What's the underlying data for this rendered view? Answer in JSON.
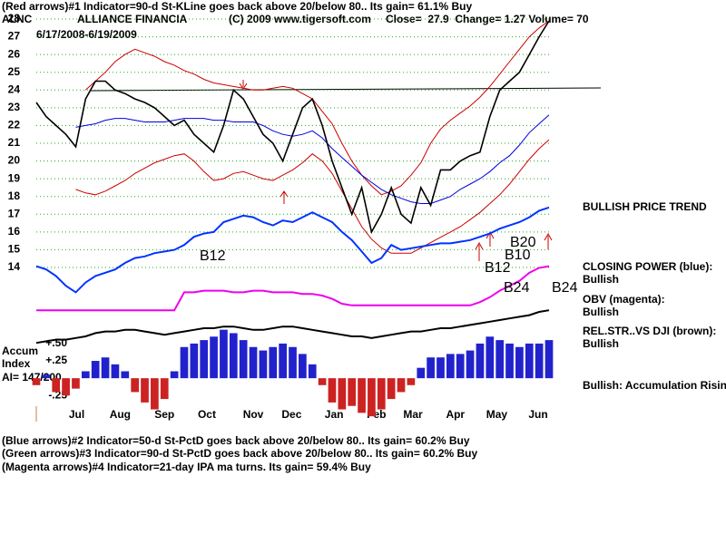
{
  "header": {
    "indicator_line": "(Red arrows)#1 Indicator=90-d St-KLine goes back above 20/below 80.. Its gain= 61.1% Buy",
    "ticker": "ALNC",
    "company": "ALLIANCE FINANCIA",
    "copyright": "(C) 2009 www.tigersoft.com",
    "quote": "Close=  27.9  Change= 1.27 Volume= 70",
    "date_range": "6/17/2008-6/19/2009"
  },
  "side_labels": {
    "trend": "BULLISH PRICE TREND",
    "closing_power": "CLOSING POWER (blue):",
    "closing_power_status": "Bullish",
    "obv": "OBV (magenta):",
    "obv_status": "Bullish",
    "rel_str": "REL.STR..VS DJI (brown):",
    "rel_str_status": "Bullish",
    "accum_status": "Bullish: Accumulation Rising"
  },
  "panel_labels": {
    "accum": "Accum",
    "index": "Index",
    "ai": "AI= 147/200"
  },
  "annotations": [
    "B12",
    "B12",
    "B10",
    "B20",
    "B24",
    "B24"
  ],
  "footer": [
    "(Blue arrows)#2 Indicator=50-d St-PctD goes back above 20/below 80.. Its gain= 60.2% Buy",
    "(Green arrows)#3 Indicator=90-d St-PctD goes back above 20/below 80.. Its gain= 60.2% Buy",
    "(Magenta arrows)#4 Indicator=21-day IPA ma turns. Its gain= 59.4% Buy"
  ],
  "chart_data": [
    {
      "type": "line",
      "x": [
        0,
        1,
        2,
        3,
        4,
        5,
        6,
        7,
        8,
        9,
        10,
        11,
        12,
        13,
        14,
        15,
        16,
        17,
        18,
        19,
        20,
        21,
        22,
        23,
        24,
        25,
        26,
        27,
        28,
        29,
        30,
        31,
        32,
        33,
        34,
        35,
        36,
        37,
        38,
        39,
        40,
        41,
        42,
        43,
        44,
        45,
        46,
        47,
        48,
        49,
        50,
        51,
        52
      ],
      "xlim": [
        0,
        52
      ],
      "xticks": [
        {
          "value": 4.1,
          "label": "Jul"
        },
        {
          "value": 8.5,
          "label": "Aug"
        },
        {
          "value": 13,
          "label": "Sep"
        },
        {
          "value": 17.3,
          "label": "Oct"
        },
        {
          "value": 22,
          "label": "Nov"
        },
        {
          "value": 25.9,
          "label": "Dec"
        },
        {
          "value": 30.2,
          "label": "Jan"
        },
        {
          "value": 34.5,
          "label": "Feb"
        },
        {
          "value": 38.2,
          "label": "Mar"
        },
        {
          "value": 42.5,
          "label": "Apr"
        },
        {
          "value": 46.7,
          "label": "May"
        },
        {
          "value": 50.9,
          "label": "Jun"
        }
      ],
      "ylim": [
        14,
        28
      ],
      "yticks": [
        14,
        15,
        16,
        17,
        18,
        19,
        20,
        21,
        22,
        23,
        24,
        25,
        26,
        27,
        28
      ],
      "grid": true,
      "series": [
        {
          "color": "#cc0000",
          "values": [
            null,
            null,
            null,
            null,
            null,
            24.0,
            24.5,
            25.0,
            25.6,
            26.0,
            26.3,
            26.1,
            25.9,
            25.6,
            25.4,
            25.1,
            24.9,
            24.6,
            24.4,
            24.3,
            24.2,
            24.1,
            24.0,
            24.0,
            24.1,
            24.2,
            24.1,
            23.8,
            23.5,
            22.8,
            22.1,
            21.0,
            20.0,
            19.2,
            18.6,
            18.1,
            18.3,
            18.6,
            19.2,
            19.9,
            21.0,
            21.8,
            22.3,
            22.7,
            23.1,
            23.6,
            24.2,
            24.9,
            25.6,
            26.3,
            27.0,
            27.5,
            27.9
          ]
        },
        {
          "color": "#cc0000",
          "values": [
            null,
            null,
            null,
            null,
            18.4,
            18.2,
            18.1,
            18.3,
            18.6,
            18.9,
            19.3,
            19.6,
            19.9,
            20.1,
            20.3,
            20.4,
            20.0,
            19.4,
            18.9,
            19.0,
            19.3,
            19.4,
            19.2,
            19.0,
            18.9,
            19.2,
            19.5,
            19.9,
            20.4,
            20.0,
            19.3,
            18.3,
            17.3,
            16.3,
            15.6,
            15.1,
            14.8,
            14.8,
            14.8,
            15.1,
            15.4,
            15.7,
            16.0,
            16.3,
            16.7,
            17.1,
            17.6,
            18.1,
            18.7,
            19.4,
            20.1,
            20.7,
            21.2
          ]
        },
        {
          "color": "#0000dd",
          "values": [
            null,
            null,
            null,
            null,
            21.9,
            22.0,
            22.1,
            22.3,
            22.4,
            22.4,
            22.3,
            22.2,
            22.2,
            22.2,
            22.3,
            22.4,
            22.4,
            22.4,
            22.3,
            22.3,
            22.2,
            22.2,
            22.2,
            22.0,
            21.7,
            21.5,
            21.4,
            21.5,
            21.7,
            21.3,
            20.7,
            20.2,
            19.7,
            19.2,
            18.8,
            18.4,
            18.1,
            17.9,
            17.7,
            17.6,
            17.6,
            17.8,
            18.0,
            18.4,
            18.7,
            19.0,
            19.4,
            19.9,
            20.3,
            20.9,
            21.6,
            22.1,
            22.6
          ]
        },
        {
          "color": "#000000",
          "values": [
            23.3,
            22.5,
            22.0,
            21.5,
            20.8,
            23.5,
            24.5,
            24.5,
            24.0,
            23.8,
            23.5,
            23.3,
            23.0,
            22.5,
            22.0,
            22.3,
            21.5,
            21.0,
            20.5,
            22.0,
            24.0,
            23.5,
            22.5,
            21.5,
            21.0,
            20.0,
            21.5,
            23.0,
            23.5,
            22.0,
            20.0,
            18.5,
            17.0,
            18.5,
            16.0,
            17.0,
            18.5,
            17.0,
            16.5,
            18.5,
            17.5,
            19.5,
            19.5,
            20.0,
            20.3,
            20.5,
            22.5,
            24.0,
            24.5,
            25.0,
            26.0,
            27.0,
            27.9
          ]
        }
      ]
    },
    {
      "type": "line",
      "x": [
        0,
        1,
        2,
        3,
        4,
        5,
        6,
        7,
        8,
        9,
        10,
        11,
        12,
        13,
        14,
        15,
        16,
        17,
        18,
        19,
        20,
        21,
        22,
        23,
        24,
        25,
        26,
        27,
        28,
        29,
        30,
        31,
        32,
        33,
        34,
        35,
        36,
        37,
        38,
        39,
        40,
        41,
        42,
        43,
        44,
        45,
        46,
        47,
        48,
        49,
        50,
        51,
        52
      ],
      "xlim": [
        0,
        52
      ],
      "ylim": [
        0,
        100
      ],
      "series": [
        {
          "color": "#0033ff",
          "values": [
            48,
            46,
            42,
            36,
            32,
            38,
            42,
            44,
            46,
            50,
            53,
            54,
            56,
            57,
            58,
            61,
            66,
            68,
            69,
            75,
            77,
            79,
            78,
            75,
            73,
            76,
            75,
            78,
            81,
            78,
            75,
            69,
            64,
            57,
            50,
            53,
            61,
            58,
            59,
            60,
            61,
            62,
            62,
            63,
            64,
            66,
            68,
            71,
            73,
            75,
            78,
            82,
            84
          ]
        },
        {
          "color": "#ee00ee",
          "values": [
            21,
            21,
            21,
            21,
            21,
            21,
            21,
            21,
            21,
            21,
            21,
            21,
            21,
            21,
            21,
            32,
            32,
            33,
            33,
            33,
            32,
            32,
            33,
            33,
            32,
            32,
            32,
            31,
            31,
            30,
            28,
            25,
            24,
            24,
            24,
            24,
            24,
            24,
            24,
            24,
            24,
            24,
            24,
            24,
            24,
            26,
            29,
            33,
            36,
            39,
            44,
            47,
            48
          ]
        },
        {
          "color": "#000000",
          "values": [
            1,
            2,
            3,
            3,
            4,
            5,
            7,
            8,
            8,
            9,
            9,
            8,
            7,
            6,
            7,
            8,
            9,
            10,
            10,
            11,
            11,
            10,
            9,
            9,
            10,
            11,
            11,
            10,
            9,
            8,
            7,
            6,
            5,
            5,
            4,
            5,
            6,
            7,
            8,
            8,
            9,
            10,
            10,
            11,
            12,
            13,
            14,
            15,
            16,
            17,
            18,
            20,
            21
          ]
        }
      ]
    },
    {
      "type": "bar",
      "x": [
        0,
        1,
        2,
        3,
        4,
        5,
        6,
        7,
        8,
        9,
        10,
        11,
        12,
        13,
        14,
        15,
        16,
        17,
        18,
        19,
        20,
        21,
        22,
        23,
        24,
        25,
        26,
        27,
        28,
        29,
        30,
        31,
        32,
        33,
        34,
        35,
        36,
        37,
        38,
        39,
        40,
        41,
        42,
        43,
        44,
        45,
        46,
        47,
        48,
        49,
        50,
        51,
        52
      ],
      "xlim": [
        0,
        52
      ],
      "ylim": [
        -0.6,
        0.8
      ],
      "yticks": [
        {
          "value": 0.5,
          "label": "+.50"
        },
        {
          "value": 0.25,
          "label": "+.25"
        },
        {
          "value": -0.25,
          "label": "-.25"
        }
      ],
      "positive_color": "#2222cc",
      "negative_color": "#cc2222",
      "values": [
        -0.1,
        0.05,
        -0.2,
        -0.25,
        -0.15,
        0.1,
        0.25,
        0.3,
        0.2,
        0.1,
        -0.2,
        -0.35,
        -0.45,
        -0.3,
        0.1,
        0.45,
        0.5,
        0.55,
        0.6,
        0.7,
        0.65,
        0.55,
        0.45,
        0.4,
        0.45,
        0.5,
        0.45,
        0.35,
        0.2,
        -0.1,
        -0.35,
        -0.45,
        -0.4,
        -0.5,
        -0.55,
        -0.45,
        -0.3,
        -0.2,
        -0.1,
        0.15,
        0.3,
        0.3,
        0.35,
        0.35,
        0.4,
        0.5,
        0.6,
        0.55,
        0.5,
        0.45,
        0.5,
        0.5,
        0.55
      ]
    }
  ]
}
